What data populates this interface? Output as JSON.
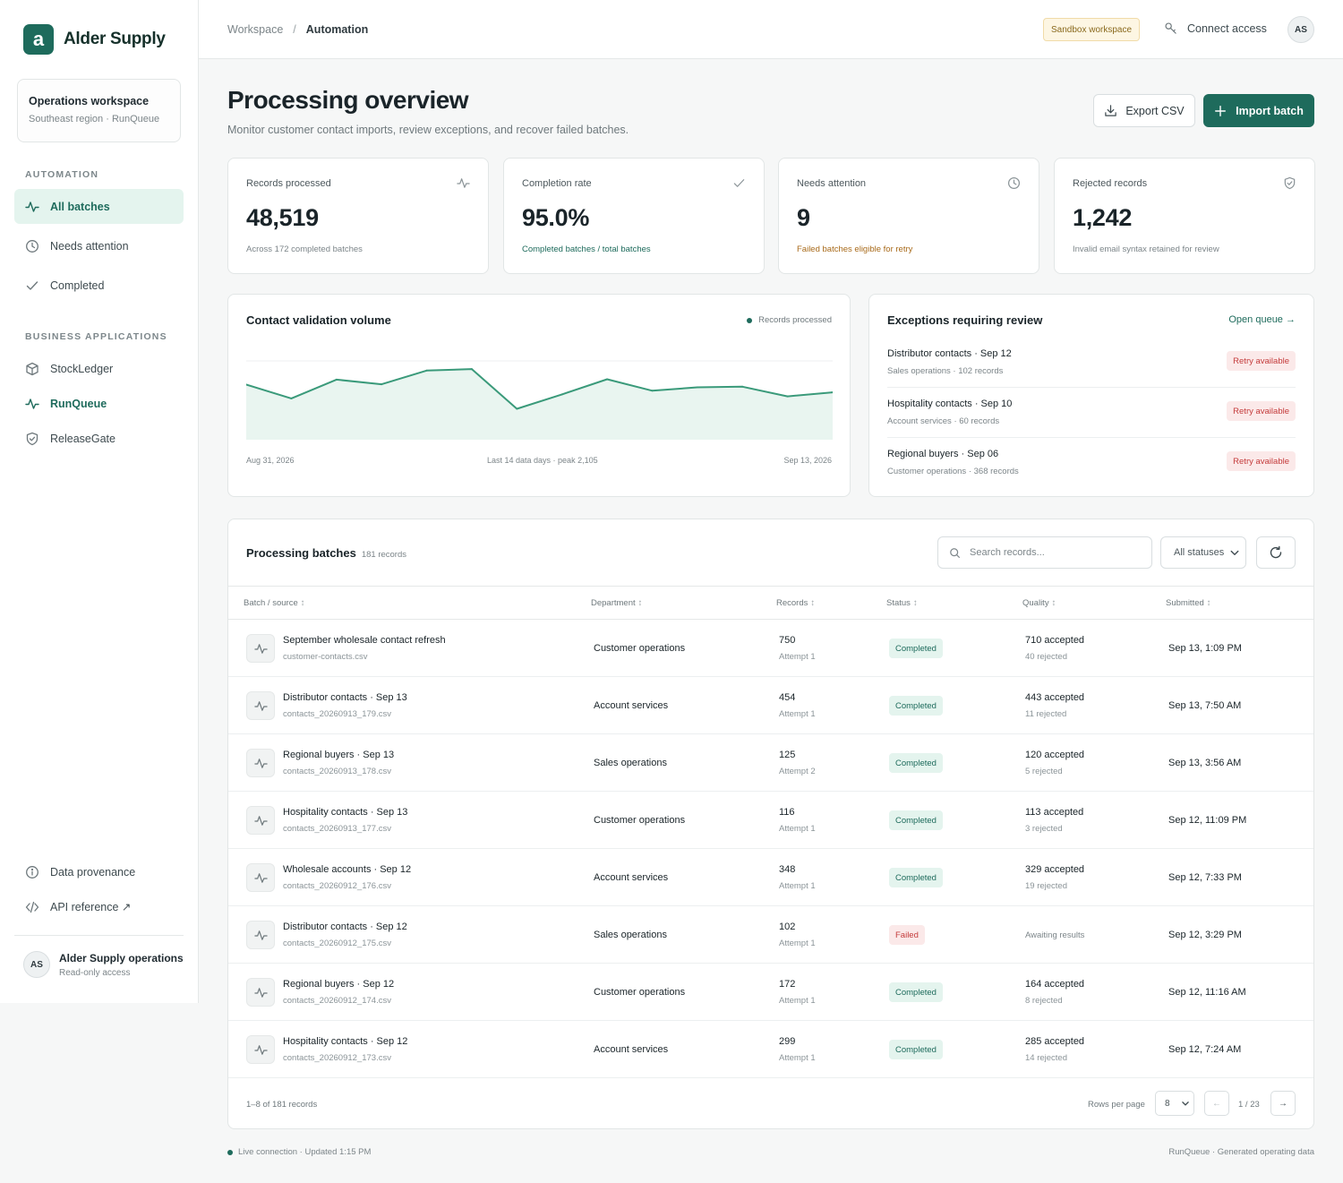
{
  "brand": {
    "logo_letter": "a",
    "name": "Alder Supply",
    "accent": "#1e6b5c"
  },
  "workspace": {
    "title": "Operations workspace",
    "subtitle": "Southeast region · RunQueue"
  },
  "sidebar": {
    "automation_label": "AUTOMATION",
    "automation_items": [
      {
        "label": "All batches",
        "icon": "activity-icon",
        "active": true
      },
      {
        "label": "Needs attention",
        "icon": "clock-icon"
      },
      {
        "label": "Completed",
        "icon": "check-icon"
      }
    ],
    "apps_label": "BUSINESS APPLICATIONS",
    "app_items": [
      {
        "label": "StockLedger",
        "icon": "box-icon"
      },
      {
        "label": "RunQueue",
        "icon": "activity-icon",
        "current": true
      },
      {
        "label": "ReleaseGate",
        "icon": "shield-check-icon"
      }
    ],
    "bottom_items": [
      {
        "label": "Data provenance",
        "icon": "info-icon"
      },
      {
        "label": "API reference ↗",
        "icon": "code-icon"
      }
    ],
    "user": {
      "initials": "AS",
      "name": "Alder Supply operations",
      "role": "Read-only access"
    }
  },
  "topbar": {
    "breadcrumb": [
      "Workspace",
      "Automation"
    ],
    "separator": "/",
    "sandbox_badge": "Sandbox workspace",
    "connect_label": "Connect access",
    "avatar_initials": "AS"
  },
  "page": {
    "title": "Processing overview",
    "subtitle": "Monitor customer contact imports, review exceptions, and recover failed batches.",
    "export_label": "Export CSV",
    "import_label": "Import batch"
  },
  "stats": [
    {
      "label": "Records processed",
      "value": "48,519",
      "foot": "Across 172 completed batches",
      "icon": "activity-icon",
      "tone": "muted"
    },
    {
      "label": "Completion rate",
      "value": "95.0%",
      "foot": "Completed batches / total batches",
      "icon": "check-icon",
      "tone": "green"
    },
    {
      "label": "Needs attention",
      "value": "9",
      "foot": "Failed batches eligible for retry",
      "icon": "clock-icon",
      "tone": "amber"
    },
    {
      "label": "Rejected records",
      "value": "1,242",
      "foot": "Invalid email syntax retained for review",
      "icon": "shield-check-icon",
      "tone": "muted"
    }
  ],
  "chart": {
    "title": "Contact validation volume",
    "legend": "Records processed",
    "x_start": "Aug 31, 2026",
    "x_mid": "Last 14 data days · peak 2,105",
    "x_end": "Sep 13, 2026"
  },
  "chart_data": {
    "type": "area",
    "x": [
      "Aug 31, 2026",
      "",
      "",
      "",
      "",
      "",
      "",
      "",
      "",
      "",
      "",
      "",
      "",
      "Sep 13, 2026"
    ],
    "series": [
      {
        "name": "Records processed",
        "values": [
          1640,
          1230,
          1790,
          1650,
          2060,
          2105,
          920,
          1350,
          1800,
          1460,
          1560,
          1580,
          1290,
          1410
        ]
      }
    ],
    "ylim": [
      0,
      2400
    ],
    "grid": true,
    "legend": "top-right",
    "color": "#3a9a7a"
  },
  "exceptions": {
    "title": "Exceptions requiring review",
    "link": "Open queue →",
    "items": [
      {
        "title": "Distributor contacts · Sep 12",
        "sub": "Sales operations · 102 records",
        "action": "Retry available"
      },
      {
        "title": "Hospitality contacts · Sep 10",
        "sub": "Account services · 60 records",
        "action": "Retry available"
      },
      {
        "title": "Regional buyers · Sep 06",
        "sub": "Customer operations · 368 records",
        "action": "Retry available"
      }
    ]
  },
  "table": {
    "title": "Processing batches",
    "count": "181 records",
    "search_placeholder": "Search records...",
    "status_filter": "All statuses",
    "columns": [
      "Batch / source",
      "Department",
      "Records",
      "Status",
      "Quality",
      "Submitted"
    ],
    "sort_glyph": "↕",
    "rows": [
      {
        "name": "September wholesale contact refresh",
        "file": "customer-contacts.csv",
        "dept": "Customer operations",
        "records": "750",
        "attempt": "Attempt 1",
        "status": "Completed",
        "accepted": "710 accepted",
        "rejected": "40 rejected",
        "submitted": "Sep 13, 1:09 PM"
      },
      {
        "name": "Distributor contacts · Sep 13",
        "file": "contacts_20260913_179.csv",
        "dept": "Account services",
        "records": "454",
        "attempt": "Attempt 1",
        "status": "Completed",
        "accepted": "443 accepted",
        "rejected": "11 rejected",
        "submitted": "Sep 13, 7:50 AM"
      },
      {
        "name": "Regional buyers · Sep 13",
        "file": "contacts_20260913_178.csv",
        "dept": "Sales operations",
        "records": "125",
        "attempt": "Attempt 2",
        "status": "Completed",
        "accepted": "120 accepted",
        "rejected": "5 rejected",
        "submitted": "Sep 13, 3:56 AM"
      },
      {
        "name": "Hospitality contacts · Sep 13",
        "file": "contacts_20260913_177.csv",
        "dept": "Customer operations",
        "records": "116",
        "attempt": "Attempt 1",
        "status": "Completed",
        "accepted": "113 accepted",
        "rejected": "3 rejected",
        "submitted": "Sep 12, 11:09 PM"
      },
      {
        "name": "Wholesale accounts · Sep 12",
        "file": "contacts_20260912_176.csv",
        "dept": "Account services",
        "records": "348",
        "attempt": "Attempt 1",
        "status": "Completed",
        "accepted": "329 accepted",
        "rejected": "19 rejected",
        "submitted": "Sep 12, 7:33 PM"
      },
      {
        "name": "Distributor contacts · Sep 12",
        "file": "contacts_20260912_175.csv",
        "dept": "Sales operations",
        "records": "102",
        "attempt": "Attempt 1",
        "status": "Failed",
        "quality_note": "Awaiting results",
        "submitted": "Sep 12, 3:29 PM"
      },
      {
        "name": "Regional buyers · Sep 12",
        "file": "contacts_20260912_174.csv",
        "dept": "Customer operations",
        "records": "172",
        "attempt": "Attempt 1",
        "status": "Completed",
        "accepted": "164 accepted",
        "rejected": "8 rejected",
        "submitted": "Sep 12, 11:16 AM"
      },
      {
        "name": "Hospitality contacts · Sep 12",
        "file": "contacts_20260912_173.csv",
        "dept": "Account services",
        "records": "299",
        "attempt": "Attempt 1",
        "status": "Completed",
        "accepted": "285 accepted",
        "rejected": "14 rejected",
        "submitted": "Sep 12, 7:24 AM"
      }
    ],
    "footer_range": "1–8 of 181 records",
    "rows_per_page_label": "Rows per page",
    "rows_per_page": "8",
    "prev": "←",
    "page": "1 / 23",
    "next": "→"
  },
  "footer": {
    "status": "Live connection · Updated 1:15 PM",
    "right": "RunQueue · Generated operating data"
  }
}
